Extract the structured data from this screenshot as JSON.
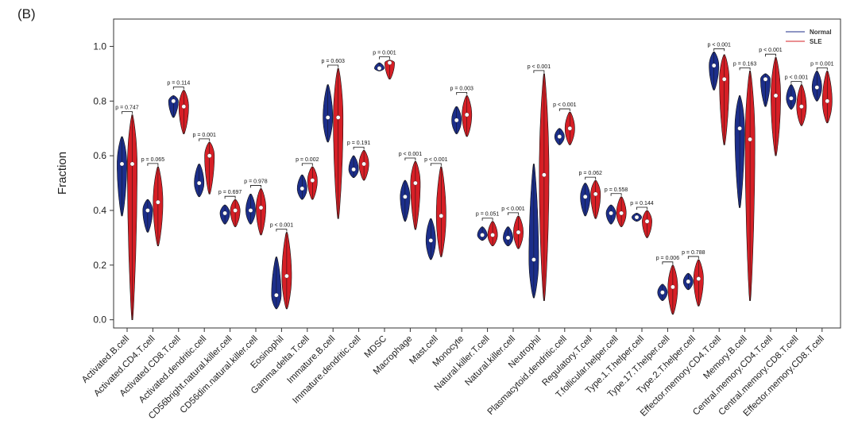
{
  "panel_label": "(B)",
  "colors": {
    "normal": "#1c2e8a",
    "sle": "#d61f26",
    "median": "#ffffff"
  },
  "chart_data": {
    "type": "violin",
    "title": "",
    "xlabel": "",
    "ylabel": "Fraction",
    "ylim": [
      -0.03,
      1.1
    ],
    "yticks": [
      "0.0",
      "0.2",
      "0.4",
      "0.6",
      "0.8",
      "1.0"
    ],
    "legend": {
      "position": "top-right",
      "entries": [
        "Normal",
        "SLE"
      ]
    },
    "categories": [
      "Activated.B.cell",
      "Activated.CD4.T.cell",
      "Activated.CD8.T.cell",
      "Activated.dendritic.cell",
      "CD56bright.natural.killer.cell",
      "CD56dim.natural.killer.cell",
      "Eosinophil",
      "Gamma.delta.T.cell",
      "Immature.B.cell",
      "Immature.dendritic.cell",
      "MDSC",
      "Macrophage",
      "Mast.cell",
      "Monocyte",
      "Natural.killer.T.cell",
      "Natural.killer.cell",
      "Neutrophil",
      "Plasmacytoid.dendritic.cell",
      "Regulatory.T.cell",
      "T.follicular.helper.cell",
      "Type.1.T.helper.cell",
      "Type.17.T.helper.cell",
      "Type.2.T.helper.cell",
      "Effector.memory.CD4.T.cell",
      "Memory.B.cell",
      "Central.memory.CD4.T.cell",
      "Central.memory.CD8.T.cell",
      "Effector.memory.CD8.T.cell"
    ],
    "p_values": [
      "p = 0.747",
      "p = 0.065",
      "p = 0.114",
      "p = 0.001",
      "p = 0.697",
      "p = 0.978",
      "p < 0.001",
      "p = 0.002",
      "p = 0.603",
      "p = 0.191",
      "p = 0.001",
      "p < 0.001",
      "p < 0.001",
      "p = 0.003",
      "p = 0.051",
      "p < 0.001",
      "p < 0.001",
      "p < 0.001",
      "p = 0.062",
      "p = 0.558",
      "p = 0.144",
      "p = 0.006",
      "p = 0.788",
      "p < 0.001",
      "p = 0.163",
      "p < 0.001",
      "p < 0.001",
      "p = 0.001"
    ],
    "series": [
      {
        "name": "Normal",
        "min": [
          0.38,
          0.32,
          0.74,
          0.45,
          0.35,
          0.35,
          0.04,
          0.44,
          0.65,
          0.52,
          0.91,
          0.36,
          0.22,
          0.68,
          0.29,
          0.27,
          0.08,
          0.64,
          0.38,
          0.35,
          0.36,
          0.07,
          0.11,
          0.84,
          0.41,
          0.78,
          0.77,
          0.8
        ],
        "max": [
          0.67,
          0.44,
          0.82,
          0.57,
          0.42,
          0.46,
          0.23,
          0.53,
          0.86,
          0.6,
          0.94,
          0.51,
          0.37,
          0.78,
          0.34,
          0.34,
          0.57,
          0.7,
          0.5,
          0.42,
          0.39,
          0.13,
          0.17,
          0.98,
          0.82,
          0.9,
          0.86,
          0.91
        ],
        "median": [
          0.57,
          0.4,
          0.8,
          0.5,
          0.39,
          0.4,
          0.09,
          0.48,
          0.74,
          0.55,
          0.92,
          0.45,
          0.29,
          0.73,
          0.31,
          0.3,
          0.22,
          0.67,
          0.45,
          0.39,
          0.375,
          0.1,
          0.14,
          0.93,
          0.7,
          0.88,
          0.81,
          0.85
        ]
      },
      {
        "name": "SLE",
        "min": [
          0.0,
          0.27,
          0.68,
          0.46,
          0.34,
          0.31,
          0.04,
          0.44,
          0.37,
          0.51,
          0.88,
          0.33,
          0.23,
          0.67,
          0.27,
          0.26,
          0.07,
          0.64,
          0.37,
          0.34,
          0.3,
          0.02,
          0.05,
          0.64,
          0.07,
          0.6,
          0.71,
          0.72
        ],
        "max": [
          0.75,
          0.56,
          0.84,
          0.65,
          0.44,
          0.48,
          0.32,
          0.56,
          0.92,
          0.62,
          0.95,
          0.58,
          0.56,
          0.82,
          0.36,
          0.38,
          0.9,
          0.76,
          0.51,
          0.45,
          0.4,
          0.2,
          0.22,
          0.97,
          0.91,
          0.96,
          0.86,
          0.91
        ],
        "median": [
          0.57,
          0.43,
          0.78,
          0.6,
          0.4,
          0.41,
          0.16,
          0.51,
          0.74,
          0.57,
          0.94,
          0.5,
          0.38,
          0.75,
          0.31,
          0.32,
          0.53,
          0.7,
          0.46,
          0.39,
          0.36,
          0.12,
          0.15,
          0.88,
          0.66,
          0.82,
          0.78,
          0.8
        ]
      }
    ]
  }
}
